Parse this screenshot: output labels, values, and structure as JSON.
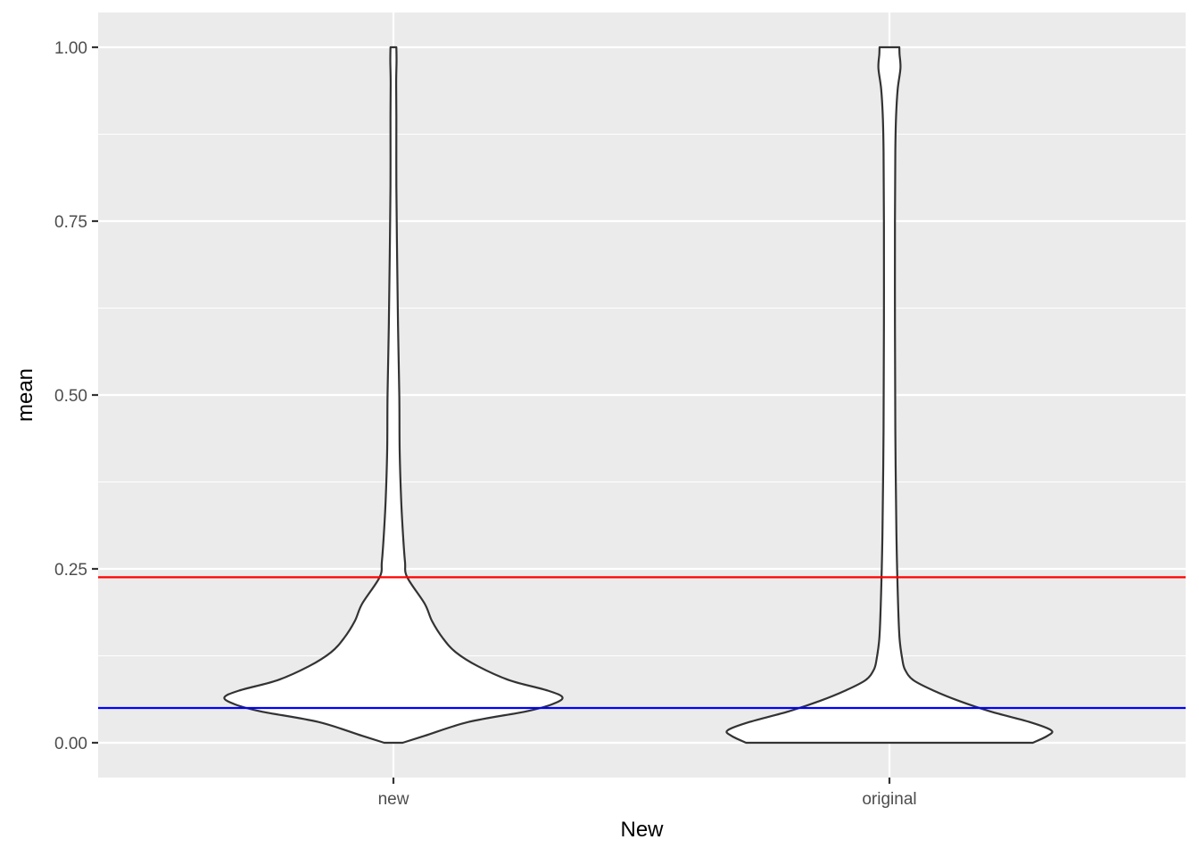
{
  "chart_data": {
    "type": "violin",
    "xlabel": "New",
    "ylabel": "mean",
    "categories": [
      "new",
      "original"
    ],
    "ylim": [
      -0.05,
      1.05
    ],
    "yticks": [
      0.0,
      0.25,
      0.5,
      0.75,
      1.0
    ],
    "ytick_labels": [
      "0.00",
      "0.25",
      "0.50",
      "0.75",
      "1.00"
    ],
    "grid": true,
    "hlines": [
      {
        "y": 0.238,
        "color": "#ff0000"
      },
      {
        "y": 0.05,
        "color": "#0000ff"
      }
    ],
    "violins": [
      {
        "category": "new",
        "profile": [
          [
            0.0,
            0.05
          ],
          [
            0.01,
            0.17
          ],
          [
            0.03,
            0.41
          ],
          [
            0.045,
            0.72
          ],
          [
            0.055,
            0.86
          ],
          [
            0.065,
            0.92
          ],
          [
            0.075,
            0.84
          ],
          [
            0.09,
            0.63
          ],
          [
            0.11,
            0.46
          ],
          [
            0.13,
            0.34
          ],
          [
            0.15,
            0.27
          ],
          [
            0.175,
            0.21
          ],
          [
            0.2,
            0.17
          ],
          [
            0.238,
            0.075
          ],
          [
            0.26,
            0.063
          ],
          [
            0.3,
            0.052
          ],
          [
            0.35,
            0.042
          ],
          [
            0.42,
            0.034
          ],
          [
            0.5,
            0.032
          ],
          [
            0.6,
            0.025
          ],
          [
            0.7,
            0.02
          ],
          [
            0.8,
            0.016
          ],
          [
            0.9,
            0.016
          ],
          [
            0.95,
            0.015
          ],
          [
            0.98,
            0.017
          ],
          [
            1.0,
            0.016
          ]
        ]
      },
      {
        "category": "original",
        "profile": [
          [
            0.0,
            0.78
          ],
          [
            0.01,
            0.86
          ],
          [
            0.018,
            0.88
          ],
          [
            0.03,
            0.76
          ],
          [
            0.045,
            0.55
          ],
          [
            0.06,
            0.38
          ],
          [
            0.075,
            0.24
          ],
          [
            0.09,
            0.13
          ],
          [
            0.105,
            0.085
          ],
          [
            0.12,
            0.07
          ],
          [
            0.15,
            0.055
          ],
          [
            0.2,
            0.047
          ],
          [
            0.3,
            0.038
          ],
          [
            0.45,
            0.032
          ],
          [
            0.6,
            0.03
          ],
          [
            0.75,
            0.03
          ],
          [
            0.85,
            0.032
          ],
          [
            0.9,
            0.036
          ],
          [
            0.94,
            0.045
          ],
          [
            0.97,
            0.06
          ],
          [
            0.99,
            0.055
          ],
          [
            1.0,
            0.054
          ]
        ]
      }
    ],
    "colors": {
      "panel_bg": "#ebebeb",
      "grid": "#ffffff",
      "violin_fill": "#ffffff",
      "violin_stroke": "#333333"
    }
  }
}
